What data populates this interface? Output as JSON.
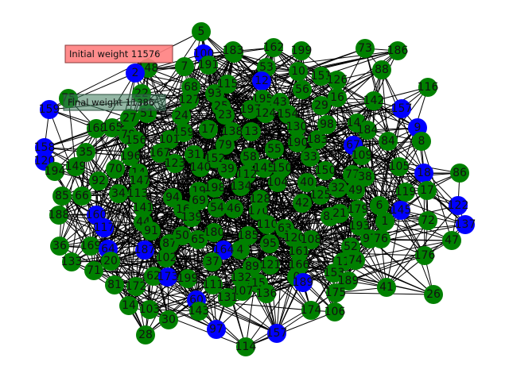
{
  "notes": {
    "initial": "Initial weight 11576",
    "final": "Final weight 11386"
  },
  "colors": {
    "background": "#ffffff",
    "edge": "#000000",
    "selected_node": "#0000ff",
    "other_node": "#008000",
    "initial_note_fill": "#ff8080",
    "final_note_fill": "#3a7a5a"
  },
  "graph": {
    "nodes": [
      {
        "id": "5",
        "group": "other"
      },
      {
        "id": "182",
        "group": "other"
      },
      {
        "id": "162",
        "group": "other"
      },
      {
        "id": "199",
        "group": "other"
      },
      {
        "id": "73",
        "group": "other"
      },
      {
        "id": "186",
        "group": "other"
      },
      {
        "id": "100",
        "group": "selected"
      },
      {
        "id": "148",
        "group": "other"
      },
      {
        "id": "7",
        "group": "other"
      },
      {
        "id": "191",
        "group": "other"
      },
      {
        "id": "53",
        "group": "other"
      },
      {
        "id": "10",
        "group": "other"
      },
      {
        "id": "151",
        "group": "other"
      },
      {
        "id": "126",
        "group": "other"
      },
      {
        "id": "88",
        "group": "other"
      },
      {
        "id": "116",
        "group": "other"
      },
      {
        "id": "12",
        "group": "selected"
      },
      {
        "id": "68",
        "group": "other"
      },
      {
        "id": "93",
        "group": "other"
      },
      {
        "id": "115",
        "group": "other"
      },
      {
        "id": "127",
        "group": "other"
      },
      {
        "id": "56",
        "group": "other"
      },
      {
        "id": "195",
        "group": "other"
      },
      {
        "id": "43",
        "group": "other"
      },
      {
        "id": "29",
        "group": "other"
      },
      {
        "id": "16",
        "group": "other"
      },
      {
        "id": "142",
        "group": "other"
      },
      {
        "id": "157",
        "group": "selected"
      },
      {
        "id": "22",
        "group": "other"
      },
      {
        "id": "51",
        "group": "other"
      },
      {
        "id": "25",
        "group": "other"
      },
      {
        "id": "197",
        "group": "other"
      },
      {
        "id": "124",
        "group": "other"
      },
      {
        "id": "154",
        "group": "other"
      },
      {
        "id": "27",
        "group": "other"
      },
      {
        "id": "24",
        "group": "other"
      },
      {
        "id": "23",
        "group": "other"
      },
      {
        "id": "130",
        "group": "other"
      },
      {
        "id": "98",
        "group": "other"
      },
      {
        "id": "144",
        "group": "other"
      },
      {
        "id": "9",
        "group": "selected"
      },
      {
        "id": "159",
        "group": "selected"
      },
      {
        "id": "168",
        "group": "other"
      },
      {
        "id": "165",
        "group": "other"
      },
      {
        "id": "78",
        "group": "other"
      },
      {
        "id": "156",
        "group": "other"
      },
      {
        "id": "159b",
        "group": "other",
        "label": "159"
      },
      {
        "id": "17",
        "group": "other"
      },
      {
        "id": "138",
        "group": "other"
      },
      {
        "id": "13",
        "group": "other"
      },
      {
        "id": "190",
        "group": "other"
      },
      {
        "id": "183",
        "group": "other"
      },
      {
        "id": "184",
        "group": "other"
      },
      {
        "id": "158",
        "group": "selected"
      },
      {
        "id": "120",
        "group": "selected"
      },
      {
        "id": "35",
        "group": "other"
      },
      {
        "id": "196",
        "group": "other"
      },
      {
        "id": "101",
        "group": "other"
      },
      {
        "id": "79",
        "group": "other"
      },
      {
        "id": "58",
        "group": "other"
      },
      {
        "id": "55",
        "group": "other"
      },
      {
        "id": "33",
        "group": "other"
      },
      {
        "id": "67",
        "group": "selected"
      },
      {
        "id": "109",
        "group": "other"
      },
      {
        "id": "84",
        "group": "other"
      },
      {
        "id": "8",
        "group": "other"
      },
      {
        "id": "105",
        "group": "other"
      },
      {
        "id": "167",
        "group": "other"
      },
      {
        "id": "31",
        "group": "other"
      },
      {
        "id": "152",
        "group": "other"
      },
      {
        "id": "39",
        "group": "other"
      },
      {
        "id": "145",
        "group": "other"
      },
      {
        "id": "194",
        "group": "other"
      },
      {
        "id": "149",
        "group": "other"
      },
      {
        "id": "70",
        "group": "other"
      },
      {
        "id": "14",
        "group": "other"
      },
      {
        "id": "147",
        "group": "other"
      },
      {
        "id": "123",
        "group": "other"
      },
      {
        "id": "140",
        "group": "other"
      },
      {
        "id": "112",
        "group": "other"
      },
      {
        "id": "150",
        "group": "other"
      },
      {
        "id": "40",
        "group": "other"
      },
      {
        "id": "77",
        "group": "other"
      },
      {
        "id": "38",
        "group": "other"
      },
      {
        "id": "18",
        "group": "selected"
      },
      {
        "id": "86",
        "group": "other"
      },
      {
        "id": "85",
        "group": "other"
      },
      {
        "id": "66",
        "group": "other"
      },
      {
        "id": "92",
        "group": "other"
      },
      {
        "id": "34",
        "group": "other"
      },
      {
        "id": "113",
        "group": "other"
      },
      {
        "id": "94",
        "group": "other"
      },
      {
        "id": "19",
        "group": "other"
      },
      {
        "id": "198",
        "group": "other"
      },
      {
        "id": "134",
        "group": "other"
      },
      {
        "id": "104",
        "group": "other"
      },
      {
        "id": "32",
        "group": "other"
      },
      {
        "id": "49",
        "group": "other"
      },
      {
        "id": "119",
        "group": "other"
      },
      {
        "id": "17b",
        "group": "other",
        "label": "17"
      },
      {
        "id": "188",
        "group": "other"
      },
      {
        "id": "141",
        "group": "other"
      },
      {
        "id": "16b",
        "group": "other",
        "label": "16"
      },
      {
        "id": "69",
        "group": "other"
      },
      {
        "id": "54",
        "group": "other"
      },
      {
        "id": "46",
        "group": "other"
      },
      {
        "id": "170",
        "group": "other"
      },
      {
        "id": "128",
        "group": "other"
      },
      {
        "id": "42",
        "group": "other"
      },
      {
        "id": "125",
        "group": "other"
      },
      {
        "id": "6",
        "group": "other"
      },
      {
        "id": "145b",
        "group": "selected",
        "label": "145"
      },
      {
        "id": "122",
        "group": "selected"
      },
      {
        "id": "160",
        "group": "selected"
      },
      {
        "id": "44",
        "group": "other"
      },
      {
        "id": "139",
        "group": "other"
      },
      {
        "id": "82",
        "group": "other"
      },
      {
        "id": "21",
        "group": "other"
      },
      {
        "id": "179",
        "group": "other"
      },
      {
        "id": "1",
        "group": "other"
      },
      {
        "id": "72",
        "group": "other"
      },
      {
        "id": "137",
        "group": "selected"
      },
      {
        "id": "36",
        "group": "other"
      },
      {
        "id": "117",
        "group": "selected"
      },
      {
        "id": "91",
        "group": "other"
      },
      {
        "id": "180",
        "group": "other"
      },
      {
        "id": "4",
        "group": "other"
      },
      {
        "id": "110",
        "group": "other"
      },
      {
        "id": "63",
        "group": "other"
      },
      {
        "id": "193",
        "group": "other"
      },
      {
        "id": "97",
        "group": "other"
      },
      {
        "id": "76",
        "group": "other"
      },
      {
        "id": "47",
        "group": "other"
      },
      {
        "id": "169",
        "group": "other"
      },
      {
        "id": "64",
        "group": "selected"
      },
      {
        "id": "187",
        "group": "selected"
      },
      {
        "id": "87",
        "group": "other"
      },
      {
        "id": "50",
        "group": "other"
      },
      {
        "id": "65",
        "group": "other"
      },
      {
        "id": "164",
        "group": "selected"
      },
      {
        "id": "185",
        "group": "other"
      },
      {
        "id": "95",
        "group": "other"
      },
      {
        "id": "120b",
        "group": "other",
        "label": "120"
      },
      {
        "id": "108",
        "group": "other"
      },
      {
        "id": "161",
        "group": "other"
      },
      {
        "id": "52",
        "group": "other"
      },
      {
        "id": "11",
        "group": "other"
      },
      {
        "id": "74",
        "group": "other"
      },
      {
        "id": "133",
        "group": "other"
      },
      {
        "id": "20",
        "group": "other"
      },
      {
        "id": "102",
        "group": "other"
      },
      {
        "id": "37",
        "group": "other"
      },
      {
        "id": "89",
        "group": "other"
      },
      {
        "id": "121",
        "group": "other"
      },
      {
        "id": "166",
        "group": "other"
      },
      {
        "id": "176",
        "group": "other"
      },
      {
        "id": "71",
        "group": "other"
      },
      {
        "id": "62",
        "group": "other"
      },
      {
        "id": "173",
        "group": "selected"
      },
      {
        "id": "199b",
        "group": "other",
        "label": "199"
      },
      {
        "id": "132",
        "group": "other"
      },
      {
        "id": "0",
        "group": "other"
      },
      {
        "id": "189",
        "group": "selected"
      },
      {
        "id": "153",
        "group": "other"
      },
      {
        "id": "189b",
        "group": "other",
        "label": "189"
      },
      {
        "id": "41",
        "group": "other"
      },
      {
        "id": "81",
        "group": "other"
      },
      {
        "id": "172",
        "group": "other"
      },
      {
        "id": "111",
        "group": "other"
      },
      {
        "id": "15",
        "group": "other"
      },
      {
        "id": "175",
        "group": "other"
      },
      {
        "id": "26",
        "group": "other"
      },
      {
        "id": "107",
        "group": "other"
      },
      {
        "id": "136",
        "group": "other"
      },
      {
        "id": "131",
        "group": "other"
      },
      {
        "id": "60",
        "group": "selected"
      },
      {
        "id": "174",
        "group": "other"
      },
      {
        "id": "106",
        "group": "other"
      },
      {
        "id": "14b",
        "group": "other",
        "label": "14"
      },
      {
        "id": "103",
        "group": "other"
      },
      {
        "id": "143",
        "group": "other"
      },
      {
        "id": "30",
        "group": "other"
      },
      {
        "id": "97b",
        "group": "selected",
        "label": "97"
      },
      {
        "id": "157b",
        "group": "selected",
        "label": "157"
      },
      {
        "id": "28",
        "group": "other"
      },
      {
        "id": "114",
        "group": "other"
      },
      {
        "id": "2",
        "group": "selected"
      },
      {
        "id": "75",
        "group": "other"
      },
      {
        "id": "150b",
        "group": "other",
        "label": "150"
      },
      {
        "id": "183b",
        "group": "other",
        "label": "183"
      }
    ]
  }
}
